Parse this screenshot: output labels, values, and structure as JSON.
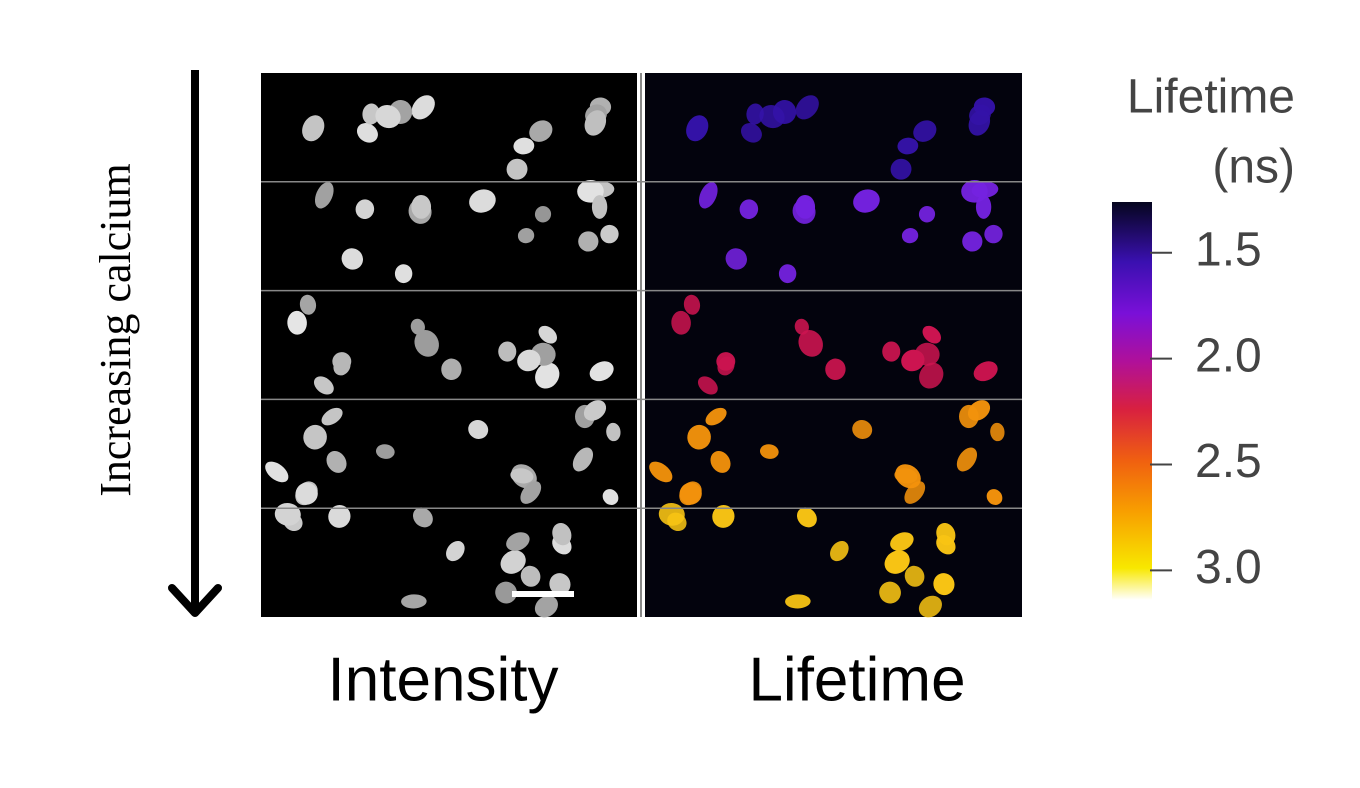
{
  "side_label": "Increasing calcium",
  "columns": [
    "Intensity",
    "Lifetime"
  ],
  "colorbar": {
    "title": [
      "Lifetime",
      "(ns)"
    ],
    "lim": [
      1.26,
      3.14
    ],
    "ticks": [
      {
        "value": 1.5,
        "label": "1.5"
      },
      {
        "value": 2.0,
        "label": "2.0"
      },
      {
        "value": 2.5,
        "label": "2.5"
      },
      {
        "value": 3.0,
        "label": "3.0"
      }
    ]
  }
}
